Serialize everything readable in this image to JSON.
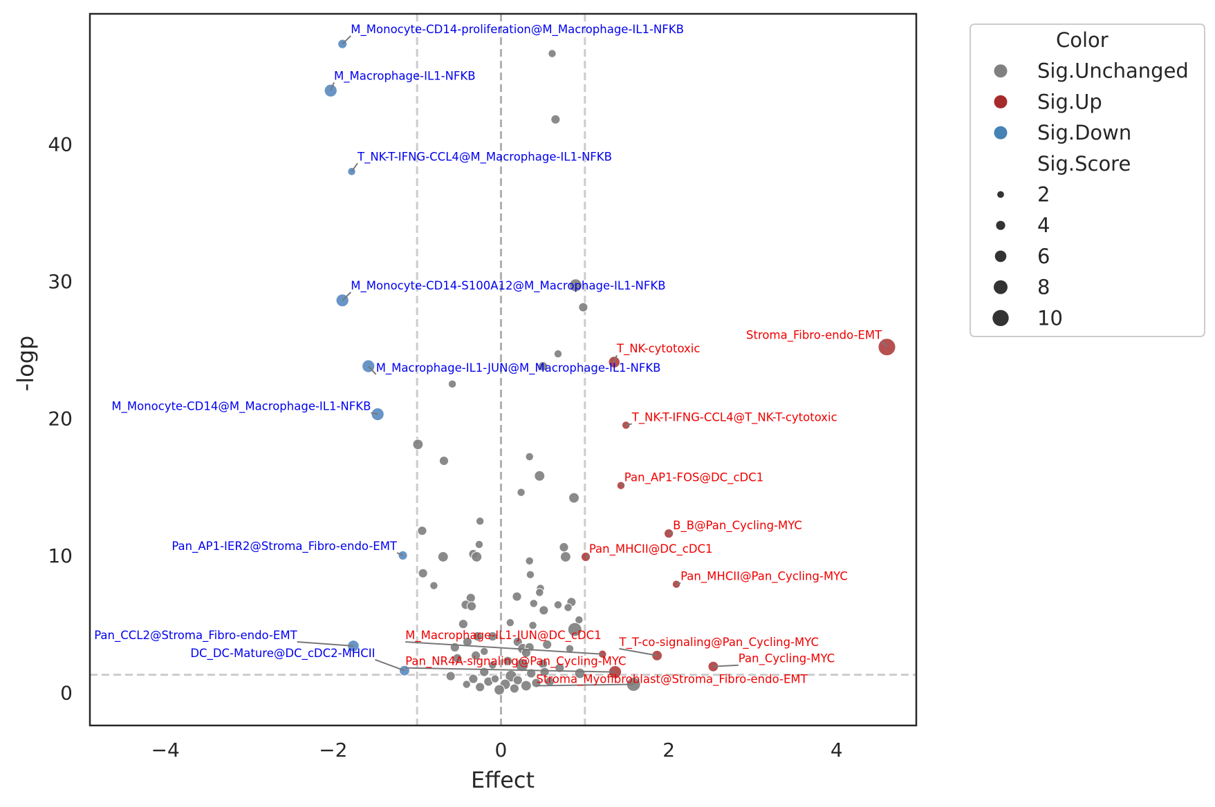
{
  "chart_data": {
    "type": "scatter",
    "title": "",
    "xlabel": "Effect",
    "ylabel": "-logp",
    "xlim": [
      -4.9,
      4.95
    ],
    "ylim": [
      -2.4,
      49.5
    ],
    "xticks": [
      -4,
      -2,
      0,
      2,
      4
    ],
    "xtick_labels": [
      "−4",
      "−2",
      "0",
      "2",
      "4"
    ],
    "yticks": [
      0,
      10,
      20,
      30,
      40
    ],
    "ytick_labels": [
      "0",
      "10",
      "20",
      "30",
      "40"
    ],
    "grid": false,
    "thresholds": {
      "x": [
        -1,
        0,
        1
      ],
      "y": [
        1.3
      ]
    },
    "legend": {
      "placement": "outside-top-right",
      "color_title": "Color",
      "size_title": "Sig.Score",
      "color_entries": [
        {
          "label": "Sig.Unchanged",
          "color": "#808080"
        },
        {
          "label": "Sig.Up",
          "color": "#a52a2a"
        },
        {
          "label": "Sig.Down",
          "color": "#4682b4"
        }
      ],
      "size_entries": [
        {
          "label": "2",
          "score": 2
        },
        {
          "label": "4",
          "score": 4
        },
        {
          "label": "6",
          "score": 6
        },
        {
          "label": "8",
          "score": 8
        },
        {
          "label": "10",
          "score": 10
        }
      ]
    },
    "colors": {
      "Sig.Unchanged": "#808080",
      "Sig.Up": "#b04242",
      "Sig.Down": "#5b8cc1"
    },
    "series": [
      {
        "name": "Sig.Down",
        "points": [
          {
            "x": -1.89,
            "y": 47.3,
            "score": 4
          },
          {
            "x": -2.03,
            "y": 43.9,
            "score": 7
          },
          {
            "x": -1.78,
            "y": 38.0,
            "score": 3
          },
          {
            "x": -1.89,
            "y": 28.6,
            "score": 7
          },
          {
            "x": -1.58,
            "y": 23.8,
            "score": 7
          },
          {
            "x": -1.47,
            "y": 20.3,
            "score": 7
          },
          {
            "x": -1.17,
            "y": 10.0,
            "score": 4
          },
          {
            "x": -1.76,
            "y": 3.4,
            "score": 6
          },
          {
            "x": -1.15,
            "y": 1.6,
            "score": 5
          }
        ]
      },
      {
        "name": "Sig.Up",
        "points": [
          {
            "x": 4.6,
            "y": 25.2,
            "score": 11
          },
          {
            "x": 1.35,
            "y": 24.1,
            "score": 6
          },
          {
            "x": 1.49,
            "y": 19.5,
            "score": 3
          },
          {
            "x": 1.43,
            "y": 15.1,
            "score": 3
          },
          {
            "x": 2.0,
            "y": 11.6,
            "score": 4
          },
          {
            "x": 1.01,
            "y": 9.9,
            "score": 4
          },
          {
            "x": 2.09,
            "y": 7.9,
            "score": 3
          },
          {
            "x": 1.21,
            "y": 2.8,
            "score": 3
          },
          {
            "x": 1.86,
            "y": 2.7,
            "score": 5
          },
          {
            "x": 2.53,
            "y": 1.9,
            "score": 5
          },
          {
            "x": 1.36,
            "y": 1.5,
            "score": 7
          }
        ]
      },
      {
        "name": "Sig.Unchanged",
        "points": [
          {
            "x": 0.61,
            "y": 46.6,
            "score": 3
          },
          {
            "x": 0.65,
            "y": 41.8,
            "score": 4
          },
          {
            "x": 0.89,
            "y": 29.7,
            "score": 7
          },
          {
            "x": 0.98,
            "y": 28.1,
            "score": 4
          },
          {
            "x": 0.68,
            "y": 24.7,
            "score": 3
          },
          {
            "x": 0.5,
            "y": 23.8,
            "score": 4
          },
          {
            "x": -0.58,
            "y": 22.5,
            "score": 3
          },
          {
            "x": -0.99,
            "y": 18.1,
            "score": 5
          },
          {
            "x": -0.68,
            "y": 16.9,
            "score": 4
          },
          {
            "x": 0.34,
            "y": 17.2,
            "score": 3
          },
          {
            "x": 0.46,
            "y": 15.8,
            "score": 5
          },
          {
            "x": 0.87,
            "y": 14.2,
            "score": 5
          },
          {
            "x": 0.24,
            "y": 14.6,
            "score": 3
          },
          {
            "x": -0.25,
            "y": 12.5,
            "score": 3
          },
          {
            "x": -0.94,
            "y": 11.8,
            "score": 4
          },
          {
            "x": -0.26,
            "y": 10.8,
            "score": 3
          },
          {
            "x": 0.75,
            "y": 10.6,
            "score": 4
          },
          {
            "x": -0.69,
            "y": 9.9,
            "score": 5
          },
          {
            "x": -0.33,
            "y": 10.1,
            "score": 4
          },
          {
            "x": -0.29,
            "y": 9.9,
            "score": 5
          },
          {
            "x": 0.77,
            "y": 9.9,
            "score": 5
          },
          {
            "x": 0.34,
            "y": 9.6,
            "score": 3
          },
          {
            "x": -0.93,
            "y": 8.7,
            "score": 4
          },
          {
            "x": -0.8,
            "y": 7.8,
            "score": 3
          },
          {
            "x": 0.35,
            "y": 8.6,
            "score": 3
          },
          {
            "x": 0.47,
            "y": 7.6,
            "score": 3
          },
          {
            "x": 0.19,
            "y": 7.0,
            "score": 4
          },
          {
            "x": 0.46,
            "y": 7.3,
            "score": 3
          },
          {
            "x": -0.36,
            "y": 6.9,
            "score": 4
          },
          {
            "x": -0.42,
            "y": 6.4,
            "score": 4
          },
          {
            "x": -0.35,
            "y": 6.3,
            "score": 4
          },
          {
            "x": 0.39,
            "y": 6.5,
            "score": 3
          },
          {
            "x": 0.68,
            "y": 6.4,
            "score": 3
          },
          {
            "x": 0.84,
            "y": 6.6,
            "score": 4
          },
          {
            "x": 0.8,
            "y": 6.2,
            "score": 3
          },
          {
            "x": 0.51,
            "y": 6.0,
            "score": 4
          },
          {
            "x": 0.93,
            "y": 5.3,
            "score": 3
          },
          {
            "x": 0.88,
            "y": 4.6,
            "score": 8
          },
          {
            "x": -0.45,
            "y": 5.0,
            "score": 4
          },
          {
            "x": 0.11,
            "y": 5.1,
            "score": 3
          },
          {
            "x": 0.38,
            "y": 4.9,
            "score": 3
          },
          {
            "x": -0.4,
            "y": 3.7,
            "score": 4
          },
          {
            "x": -0.55,
            "y": 3.3,
            "score": 4
          },
          {
            "x": -0.28,
            "y": 4.1,
            "score": 4
          },
          {
            "x": -0.1,
            "y": 4.1,
            "score": 4
          },
          {
            "x": 0.2,
            "y": 3.7,
            "score": 4
          },
          {
            "x": 0.26,
            "y": 3.2,
            "score": 5
          },
          {
            "x": 0.34,
            "y": 3.3,
            "score": 4
          },
          {
            "x": 0.55,
            "y": 3.5,
            "score": 4
          },
          {
            "x": 0.82,
            "y": 3.2,
            "score": 3
          },
          {
            "x": -0.2,
            "y": 3.0,
            "score": 3
          },
          {
            "x": -0.52,
            "y": 2.5,
            "score": 4
          },
          {
            "x": -0.3,
            "y": 2.7,
            "score": 4
          },
          {
            "x": 0.08,
            "y": 2.3,
            "score": 4
          },
          {
            "x": 0.25,
            "y": 2.0,
            "score": 7
          },
          {
            "x": 0.5,
            "y": 2.1,
            "score": 4
          },
          {
            "x": 0.7,
            "y": 1.8,
            "score": 4
          },
          {
            "x": -0.2,
            "y": 1.5,
            "score": 4
          },
          {
            "x": 0.12,
            "y": 1.2,
            "score": 6
          },
          {
            "x": 0.36,
            "y": 1.4,
            "score": 4
          },
          {
            "x": 0.52,
            "y": 1.5,
            "score": 4
          },
          {
            "x": 0.94,
            "y": 1.4,
            "score": 5
          },
          {
            "x": -0.6,
            "y": 1.2,
            "score": 4
          },
          {
            "x": -0.33,
            "y": 1.0,
            "score": 4
          },
          {
            "x": -0.15,
            "y": 0.8,
            "score": 4
          },
          {
            "x": 0.05,
            "y": 0.6,
            "score": 5
          },
          {
            "x": 0.2,
            "y": 0.9,
            "score": 4
          },
          {
            "x": 0.42,
            "y": 0.7,
            "score": 4
          },
          {
            "x": -0.41,
            "y": 0.6,
            "score": 3
          },
          {
            "x": -0.25,
            "y": 0.4,
            "score": 4
          },
          {
            "x": -0.02,
            "y": 0.2,
            "score": 5
          },
          {
            "x": 0.3,
            "y": 0.5,
            "score": 5
          },
          {
            "x": 0.58,
            "y": 0.8,
            "score": 4
          },
          {
            "x": -0.07,
            "y": 1.0,
            "score": 3
          },
          {
            "x": 0.16,
            "y": 0.3,
            "score": 4
          },
          {
            "x": 1.58,
            "y": 0.6,
            "score": 8
          },
          {
            "x": 0.3,
            "y": 2.9,
            "score": 4
          },
          {
            "x": -0.1,
            "y": 2.0,
            "score": 3
          }
        ]
      }
    ],
    "annotations": [
      {
        "text": "M_Monocyte-CD14-proliferation@M_Macrophage-IL1-NFKB",
        "color": "#0000ee",
        "series": "Sig.Down",
        "point": 0,
        "tx": -1.79,
        "ty": 48.1,
        "anchor": "start"
      },
      {
        "text": "M_Macrophage-IL1-NFKB",
        "color": "#0000ee",
        "series": "Sig.Down",
        "point": 1,
        "tx": -1.99,
        "ty": 44.7,
        "anchor": "start"
      },
      {
        "text": "T_NK-T-IFNG-CCL4@M_Macrophage-IL1-NFKB",
        "color": "#0000ee",
        "series": "Sig.Down",
        "point": 2,
        "tx": -1.71,
        "ty": 38.8,
        "anchor": "start"
      },
      {
        "text": "M_Monocyte-CD14-S100A12@M_Macrophage-IL1-NFKB",
        "color": "#0000ee",
        "series": "Sig.Down",
        "point": 3,
        "tx": -1.79,
        "ty": 29.4,
        "anchor": "start"
      },
      {
        "text": "M_Macrophage-IL1-JUN@M_Macrophage-IL1-NFKB",
        "color": "#0000ee",
        "series": "Sig.Down",
        "point": 4,
        "tx": -1.49,
        "ty": 23.4,
        "anchor": "start"
      },
      {
        "text": "M_Monocyte-CD14@M_Macrophage-IL1-NFKB",
        "color": "#0000ee",
        "series": "Sig.Down",
        "point": 5,
        "tx": -1.55,
        "ty": 20.6,
        "anchor": "end"
      },
      {
        "text": "Pan_AP1-IER2@Stroma_Fibro-endo-EMT",
        "color": "#0000ee",
        "series": "Sig.Down",
        "point": 6,
        "tx": -1.24,
        "ty": 10.4,
        "anchor": "end"
      },
      {
        "text": "Pan_CCL2@Stroma_Fibro-endo-EMT",
        "color": "#0000ee",
        "series": "Sig.Down",
        "point": 7,
        "tx": -2.43,
        "ty": 3.9,
        "anchor": "end"
      },
      {
        "text": "DC_DC-Mature@DC_cDC2-MHCII",
        "color": "#0000ee",
        "series": "Sig.Down",
        "point": 8,
        "tx": -1.5,
        "ty": 2.6,
        "anchor": "end"
      },
      {
        "text": "Stroma_Fibro-endo-EMT",
        "color": "#ee0000",
        "series": "Sig.Up",
        "point": 0,
        "tx": 4.54,
        "ty": 25.8,
        "anchor": "end"
      },
      {
        "text": "T_NK-cytotoxic",
        "color": "#ee0000",
        "series": "Sig.Up",
        "point": 1,
        "tx": 1.38,
        "ty": 24.8,
        "anchor": "start"
      },
      {
        "text": "T_NK-T-IFNG-CCL4@T_NK-T-cytotoxic",
        "color": "#ee0000",
        "series": "Sig.Up",
        "point": 2,
        "tx": 1.56,
        "ty": 19.8,
        "anchor": "start"
      },
      {
        "text": "Pan_AP1-FOS@DC_cDC1",
        "color": "#ee0000",
        "series": "Sig.Up",
        "point": 3,
        "tx": 1.47,
        "ty": 15.4,
        "anchor": "start"
      },
      {
        "text": "B_B@Pan_Cycling-MYC",
        "color": "#ee0000",
        "series": "Sig.Up",
        "point": 4,
        "tx": 2.05,
        "ty": 11.9,
        "anchor": "start"
      },
      {
        "text": "Pan_MHCII@DC_cDC1",
        "color": "#ee0000",
        "series": "Sig.Up",
        "point": 5,
        "tx": 1.05,
        "ty": 10.2,
        "anchor": "start"
      },
      {
        "text": "Pan_MHCII@Pan_Cycling-MYC",
        "color": "#ee0000",
        "series": "Sig.Up",
        "point": 6,
        "tx": 2.14,
        "ty": 8.2,
        "anchor": "start"
      },
      {
        "text": "M_Macrophage-IL1-JUN@DC_cDC1",
        "color": "#ee0000",
        "series": "Sig.Up",
        "point": 7,
        "tx": -1.14,
        "ty": 3.9,
        "anchor": "start"
      },
      {
        "text": "T_T-co-signaling@Pan_Cycling-MYC",
        "color": "#ee0000",
        "series": "Sig.Up",
        "point": 8,
        "tx": 1.41,
        "ty": 3.4,
        "anchor": "start"
      },
      {
        "text": "Pan_Cycling-MYC",
        "color": "#ee0000",
        "series": "Sig.Up",
        "point": 9,
        "tx": 2.83,
        "ty": 2.2,
        "anchor": "start"
      },
      {
        "text": "Pan_NR4A-signaling@Pan_Cycling-MYC",
        "color": "#ee0000",
        "series": "Sig.Up",
        "point": 10,
        "tx": -1.14,
        "ty": 2.0,
        "anchor": "start"
      },
      {
        "text": "Stroma_Myofibroblast@Stroma_Fibro-endo-EMT",
        "color": "#ee0000",
        "series": "Sig.Unchanged",
        "point": 75,
        "tx": 0.42,
        "ty": 0.7,
        "anchor": "start"
      }
    ]
  }
}
